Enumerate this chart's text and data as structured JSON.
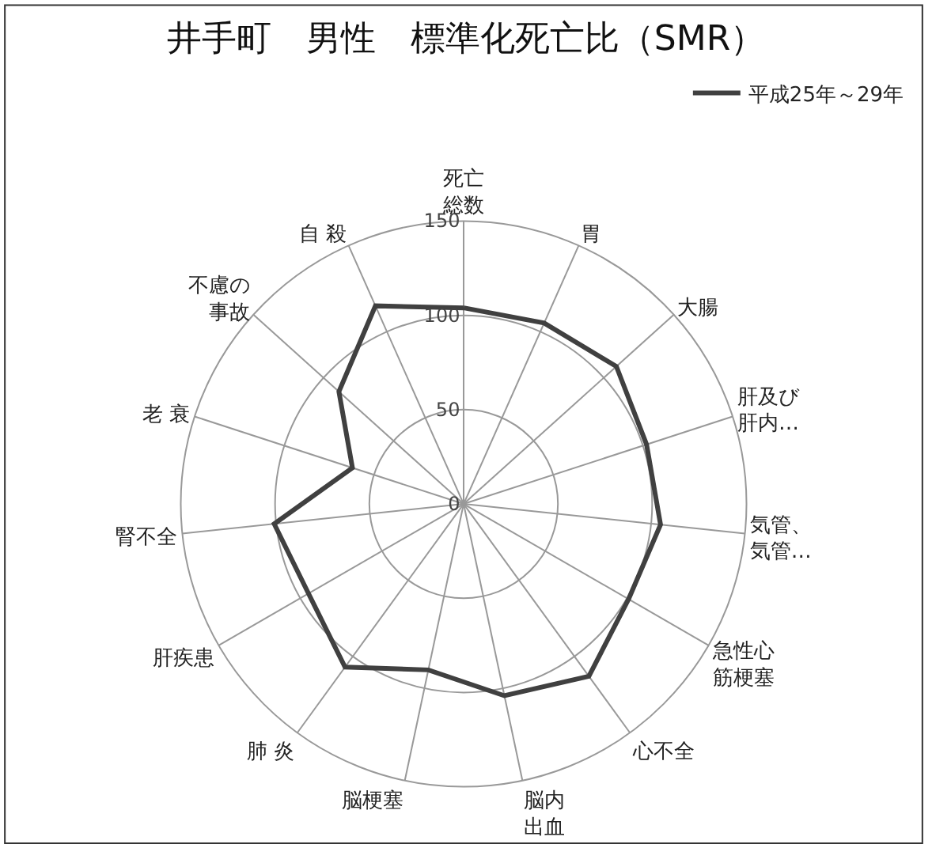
{
  "chart_data": {
    "type": "radar",
    "title": "井手町　男性　標準化死亡比（SMR）",
    "categories": [
      "死亡総数",
      "胃",
      "大腸",
      "肝及び肝内…",
      "気管、気管…",
      "急性心筋梗塞",
      "心不全",
      "脳内出血",
      "脳梗塞",
      "肺 炎",
      "肝疾患",
      "腎不全",
      "老 衰",
      "不慮の事故",
      "自 殺"
    ],
    "series": [
      {
        "name": "平成25年～29年",
        "color": "#404040",
        "values": [
          104,
          105,
          109,
          102,
          105,
          101,
          113,
          104,
          90,
          107,
          95,
          101,
          62,
          89,
          115
        ]
      }
    ],
    "ylim": [
      0,
      150
    ],
    "yticks": [
      0,
      50,
      100,
      150
    ],
    "grid": true,
    "legend": "top right",
    "marker": "none",
    "line_style": "solid"
  }
}
